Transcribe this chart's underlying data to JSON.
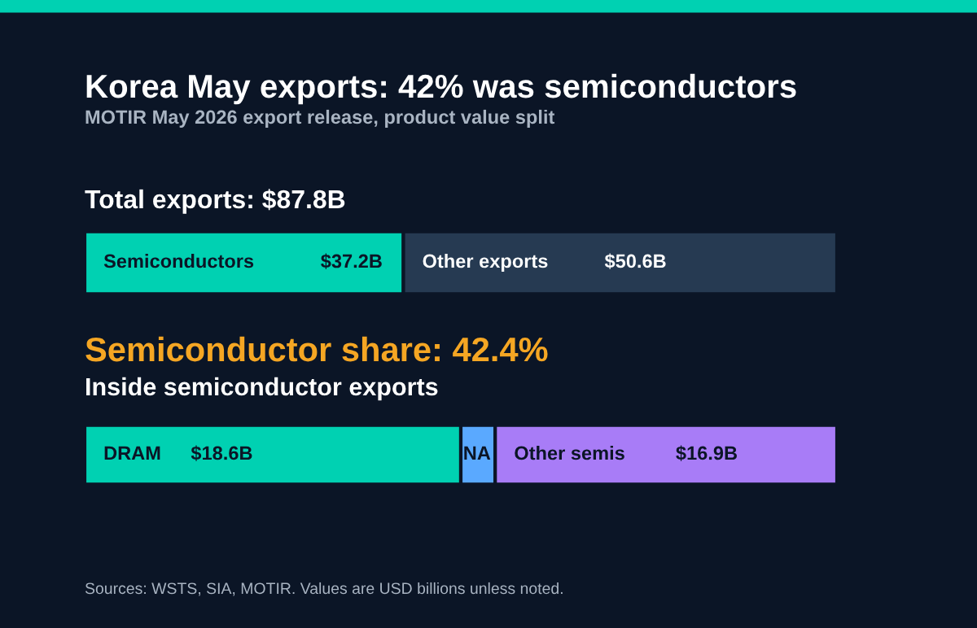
{
  "chart_data": [
    {
      "type": "bar",
      "orientation": "horizontal",
      "stacked": true,
      "title": "Korea May exports: 42% was semiconductors",
      "subtitle": "MOTIR May 2026 export release, product value split",
      "annotations": [
        "Total exports: $87.8B"
      ],
      "categories": [
        null
      ],
      "tick_labels": false,
      "series": [
        {
          "name": "Semiconductors",
          "color": "#00d1b2",
          "values": [
            37.2
          ],
          "value_labels": [
            "$37.2B"
          ]
        },
        {
          "name": "Other exports",
          "color": "#263a52",
          "values": [
            50.6
          ],
          "value_labels": [
            "$50.6B"
          ]
        }
      ]
    },
    {
      "type": "bar",
      "orientation": "horizontal",
      "stacked": true,
      "title": "Inside semiconductor exports",
      "annotations": [
        "Semiconductor share: 42.4%",
        "Sources: WSTS, SIA, MOTIR. Values are USD billions unless noted."
      ],
      "categories": [
        null
      ],
      "tick_labels": false,
      "series": [
        {
          "name": "DRAM",
          "color": "#00d1b2",
          "values": [
            18.6
          ],
          "value_labels": [
            "$18.6B"
          ]
        },
        {
          "name": "NA",
          "color": "#5aa9ff",
          "values": [
            1.7
          ]
        },
        {
          "name": "Other semis",
          "color": "#a87cf7",
          "values": [
            16.9
          ],
          "value_labels": [
            "$16.9B"
          ]
        }
      ]
    }
  ]
}
